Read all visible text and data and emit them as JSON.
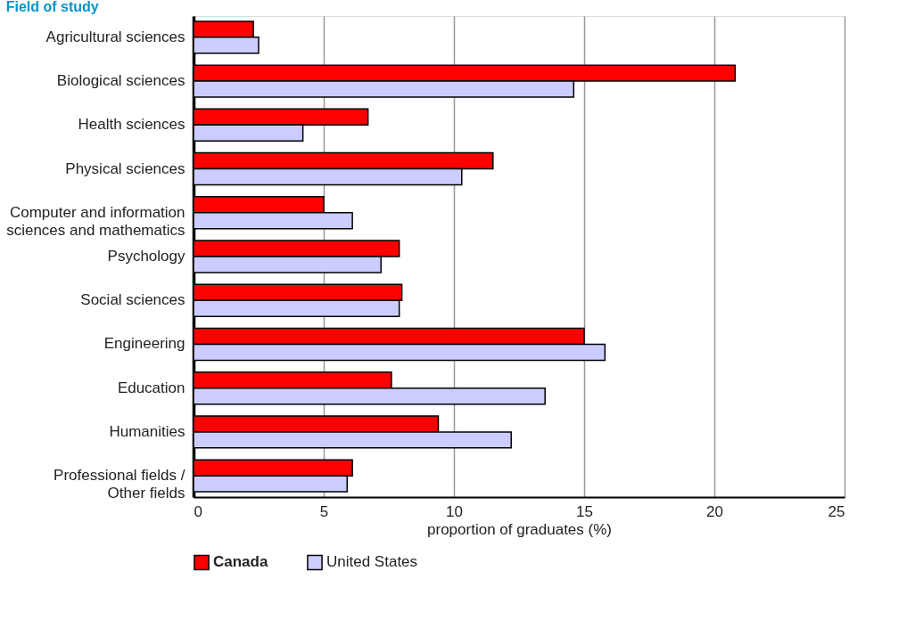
{
  "chart_data": {
    "type": "bar",
    "orientation": "horizontal",
    "title": "Field of study",
    "xlabel": "proportion of graduates (%)",
    "categories": [
      "Agricultural sciences",
      "Biological sciences",
      "Health sciences",
      "Physical sciences",
      "Computer and information\nsciences and mathematics",
      "Psychology",
      "Social sciences",
      "Engineering",
      "Education",
      "Humanities",
      "Professional fields /\nOther fields"
    ],
    "series": [
      {
        "name": "Canada",
        "color": "#ff0000",
        "values": [
          2.3,
          20.8,
          6.7,
          11.5,
          5.0,
          7.9,
          8.0,
          15.0,
          7.6,
          9.4,
          6.1
        ]
      },
      {
        "name": "United States",
        "color": "#ccccff",
        "values": [
          2.5,
          14.6,
          4.2,
          10.3,
          6.1,
          7.2,
          7.9,
          15.8,
          13.5,
          12.2,
          5.9
        ]
      }
    ],
    "xlim": [
      0,
      25
    ],
    "xticks": [
      0,
      5,
      10,
      15,
      20,
      25
    ],
    "grid": "x",
    "legend": "bottom"
  }
}
